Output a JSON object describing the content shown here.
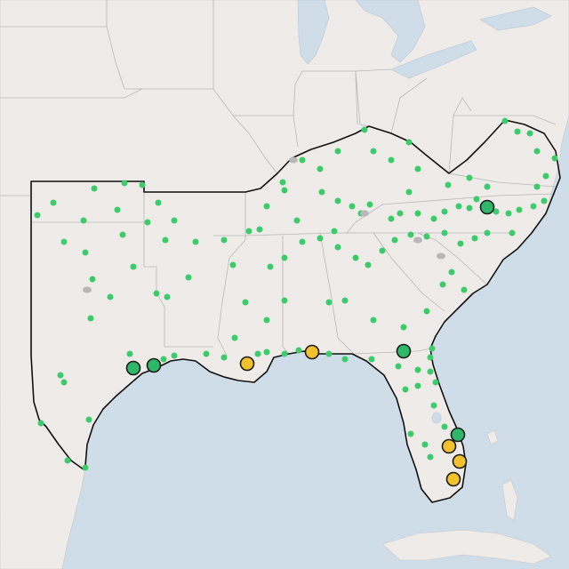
{
  "map": {
    "base_style": "light-gray-canvas",
    "colors": {
      "land": "#eeebe8",
      "water": "#cfdde9",
      "state_border": "#b9b9b9",
      "region_outline": "#111111",
      "station_minor": "#3dcb6c",
      "station_minor_gray": "#b8b8b8",
      "station_major_green": "#2fb86a",
      "station_major_yellow": "#f2c12e",
      "marker_stroke": "#1b1b1b"
    },
    "station_categories": [
      "minor-green",
      "minor-gray",
      "major-green",
      "major-yellow"
    ]
  }
}
